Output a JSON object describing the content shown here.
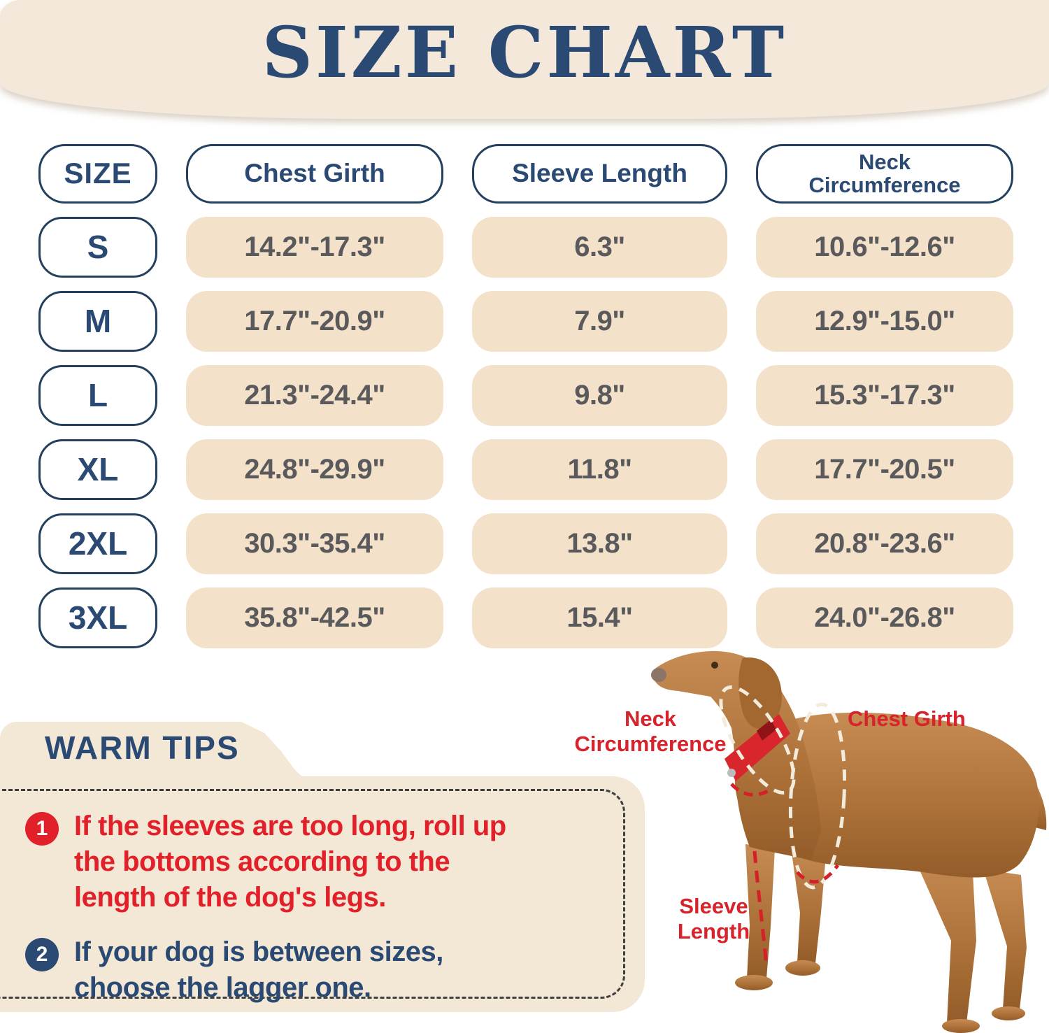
{
  "title": "SIZE CHART",
  "table": {
    "headers": [
      "SIZE",
      "Chest Girth",
      "Sleeve Length",
      "Neck\nCircumference"
    ],
    "rows": [
      {
        "size": "S",
        "chest_girth": "14.2\"-17.3\"",
        "sleeve_length": "6.3\"",
        "neck_circumference": "10.6\"-12.6\""
      },
      {
        "size": "M",
        "chest_girth": "17.7\"-20.9\"",
        "sleeve_length": "7.9\"",
        "neck_circumference": "12.9\"-15.0\""
      },
      {
        "size": "L",
        "chest_girth": "21.3\"-24.4\"",
        "sleeve_length": "9.8\"",
        "neck_circumference": "15.3\"-17.3\""
      },
      {
        "size": "XL",
        "chest_girth": "24.8\"-29.9\"",
        "sleeve_length": "11.8\"",
        "neck_circumference": "17.7\"-20.5\""
      },
      {
        "size": "2XL",
        "chest_girth": "30.3\"-35.4\"",
        "sleeve_length": "13.8\"",
        "neck_circumference": "20.8\"-23.6\""
      },
      {
        "size": "3XL",
        "chest_girth": "35.8\"-42.5\"",
        "sleeve_length": "15.4\"",
        "neck_circumference": "24.0\"-26.8\""
      }
    ]
  },
  "chart_data": {
    "type": "table",
    "title": "SIZE CHART",
    "columns": [
      "SIZE",
      "Chest Girth",
      "Sleeve Length",
      "Neck Circumference"
    ],
    "rows": [
      [
        "S",
        "14.2\"-17.3\"",
        "6.3\"",
        "10.6\"-12.6\""
      ],
      [
        "M",
        "17.7\"-20.9\"",
        "7.9\"",
        "12.9\"-15.0\""
      ],
      [
        "L",
        "21.3\"-24.4\"",
        "9.8\"",
        "15.3\"-17.3\""
      ],
      [
        "XL",
        "24.8\"-29.9\"",
        "11.8\"",
        "17.7\"-20.5\""
      ],
      [
        "2XL",
        "30.3\"-35.4\"",
        "13.8\"",
        "20.8\"-23.6\""
      ],
      [
        "3XL",
        "35.8\"-42.5\"",
        "15.4\"",
        "24.0\"-26.8\""
      ]
    ]
  },
  "warm_tips": {
    "heading": "WARM TIPS",
    "tips": [
      {
        "num": "1",
        "text": "If the sleeves are too long, roll up\nthe bottoms according to the\nlength of  the dog's legs."
      },
      {
        "num": "2",
        "text": "If your dog is between sizes,\nchoose the lagger one."
      }
    ]
  },
  "dog_diagram": {
    "labels": {
      "neck": "Neck\nCircumference",
      "chest": "Chest Girth",
      "sleeve": "Sleeve\nLength"
    }
  },
  "colors": {
    "navy": "#2b4a73",
    "red": "#e2202a",
    "banner_cream": "#f3e8d9",
    "cell_cream": "#f4e1ca",
    "value_gray": "#5a5a5c",
    "dog_brown": "#b0723c",
    "collar_red": "#d8262c"
  }
}
